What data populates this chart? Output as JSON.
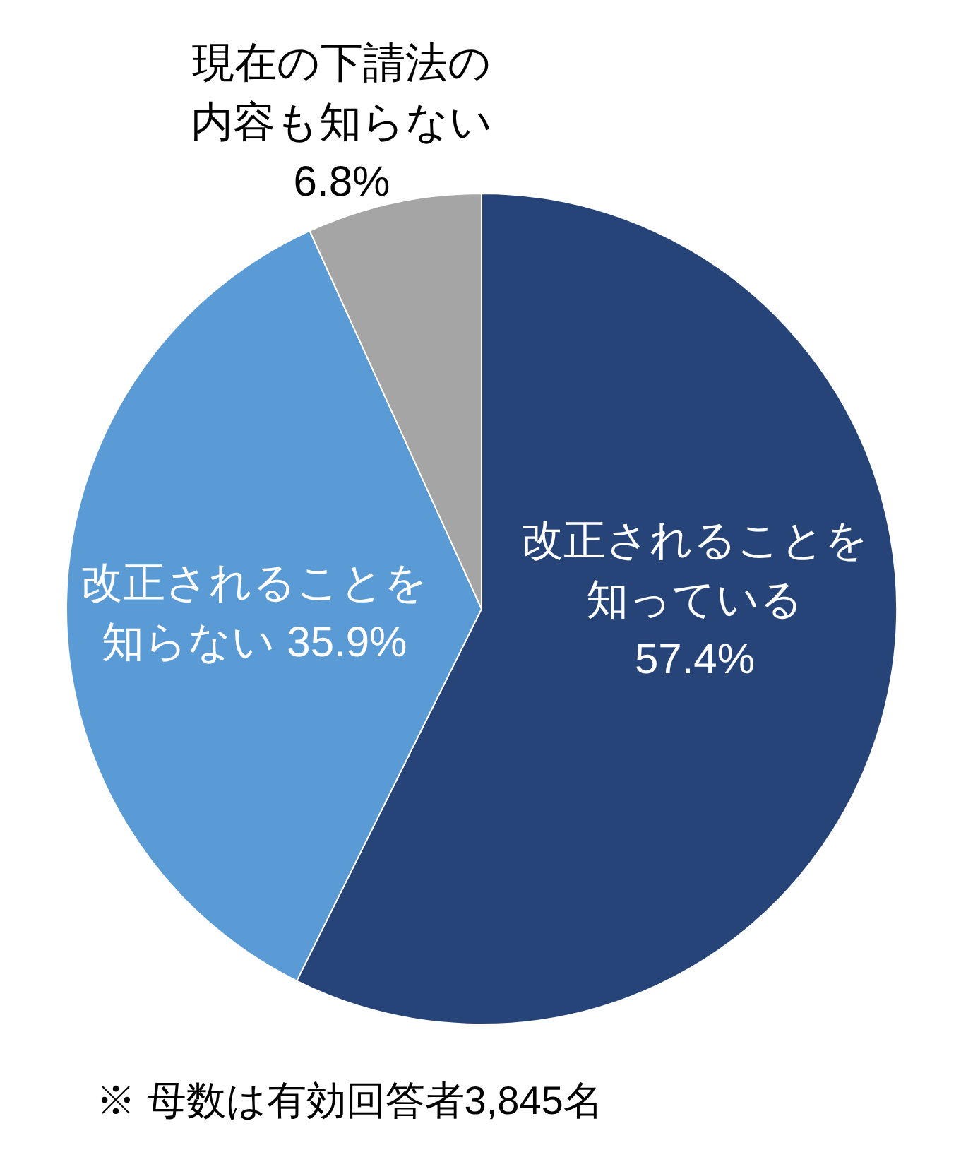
{
  "chart_data": {
    "type": "pie",
    "categories": [
      "改正されることを知っている",
      "改正されることを知らない",
      "現在の下請法の内容も知らない"
    ],
    "values": [
      57.4,
      35.9,
      6.8
    ],
    "colors": [
      "#264478",
      "#5b9bd5",
      "#a5a5a5"
    ],
    "value_labels": [
      "57.4%",
      "35.9%",
      "6.8%"
    ],
    "annotations": [
      "※ 母数は有効回答者3,845名"
    ]
  }
}
